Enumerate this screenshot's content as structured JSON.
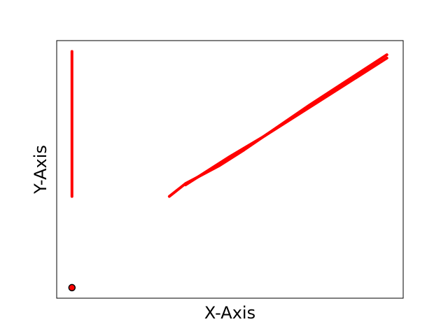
{
  "chart_data": {
    "type": "line",
    "title": "",
    "xlabel": "X-Axis",
    "ylabel": "Y-Axis",
    "ticks_visible": false,
    "grid": false,
    "legend": "none",
    "xlim": [
      0,
      100
    ],
    "ylim": [
      0,
      100
    ],
    "line_color": "#ff0000",
    "marker_fill": "#ff0000",
    "marker_edge": "#000000",
    "series": [
      {
        "type": "line",
        "x": [
          4.4,
          4.4
        ],
        "y": [
          39.5,
          95.8
        ]
      },
      {
        "type": "line",
        "x": [
          32.5,
          37.2,
          47.0,
          54.0,
          73.0,
          95.3
        ],
        "y": [
          39.5,
          44.5,
          51.5,
          57.5,
          75.0,
          94.5
        ]
      },
      {
        "type": "line",
        "x": [
          37.2,
          50.0,
          60.0,
          95.3
        ],
        "y": [
          44.0,
          55.0,
          63.0,
          93.2
        ]
      },
      {
        "type": "scatter",
        "x": [
          4.4
        ],
        "y": [
          4.1
        ]
      }
    ]
  }
}
